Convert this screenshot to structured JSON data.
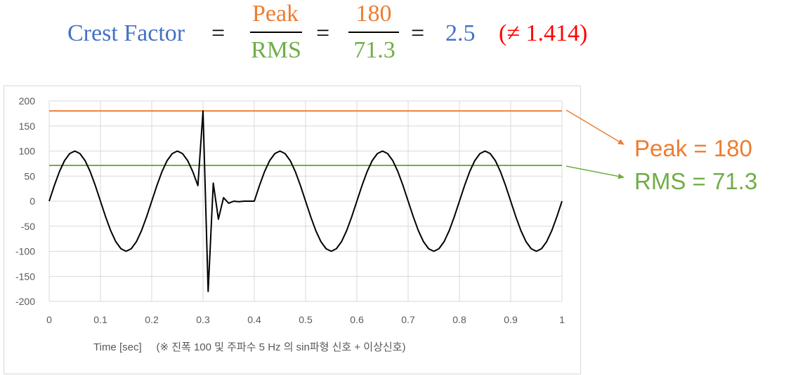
{
  "formula": {
    "lhs": "Crest Factor",
    "eq1": "=",
    "num1": "Peak",
    "den1": "RMS",
    "eq2": "=",
    "num2": "180",
    "den2": "71.3",
    "eq3": "=",
    "result": "2.5",
    "note": "(≠ 1.414)"
  },
  "colors": {
    "blue": "#4472c4",
    "orange": "#ed7d31",
    "green": "#70ad47",
    "red": "#ff0000",
    "signal": "#000000"
  },
  "callouts": {
    "peak": "Peak = 180",
    "rms": "RMS = 71.3"
  },
  "chart_data": {
    "type": "line",
    "xlabel": "Time [sec]     (※ 진폭 100 및 주파수 5 Hz 의 sin파형 신호 + 이상신호)",
    "xlim": [
      0,
      1
    ],
    "ylim": [
      -200,
      200
    ],
    "x_ticks": [
      "0",
      "0.1",
      "0.2",
      "0.3",
      "0.4",
      "0.5",
      "0.6",
      "0.7",
      "0.8",
      "0.9",
      "1"
    ],
    "y_ticks": [
      "200",
      "150",
      "100",
      "50",
      "0",
      "-50",
      "-100",
      "-150",
      "-200"
    ],
    "grid": true,
    "series": [
      {
        "name": "Peak",
        "x": [
          0,
          1
        ],
        "values": [
          180,
          180
        ]
      },
      {
        "name": "RMS",
        "x": [
          0,
          1
        ],
        "values": [
          71.3,
          71.3
        ]
      },
      {
        "x": [
          0,
          0.01,
          0.02,
          0.03,
          0.04,
          0.05,
          0.06,
          0.07,
          0.08,
          0.09,
          0.1,
          0.11,
          0.12,
          0.13,
          0.14,
          0.15,
          0.16,
          0.17,
          0.18,
          0.19,
          0.2,
          0.21,
          0.22,
          0.23,
          0.24,
          0.25,
          0.26,
          0.27,
          0.28,
          0.29,
          0.3,
          0.31,
          0.32,
          0.33,
          0.34,
          0.35,
          0.36,
          0.37,
          0.38,
          0.39,
          0.4,
          0.41,
          0.42,
          0.43,
          0.44,
          0.45,
          0.46,
          0.47,
          0.48,
          0.49,
          0.5,
          0.51,
          0.52,
          0.53,
          0.54,
          0.55,
          0.56,
          0.57,
          0.58,
          0.59,
          0.6,
          0.61,
          0.62,
          0.63,
          0.64,
          0.65,
          0.66,
          0.67,
          0.68,
          0.69,
          0.7,
          0.71,
          0.72,
          0.73,
          0.74,
          0.75,
          0.76,
          0.77,
          0.78,
          0.79,
          0.8,
          0.81,
          0.82,
          0.83,
          0.84,
          0.85,
          0.86,
          0.87,
          0.88,
          0.89,
          0.9,
          0.91,
          0.92,
          0.93,
          0.94,
          0.95,
          0.96,
          0.97,
          0.98,
          0.99,
          1.0
        ],
        "values": [
          0,
          31,
          59,
          81,
          95,
          100,
          95,
          81,
          59,
          31,
          0,
          -31,
          -59,
          -81,
          -95,
          -100,
          -95,
          -81,
          -59,
          -31,
          0,
          31,
          59,
          81,
          95,
          100,
          95,
          81,
          59,
          31,
          180,
          -180,
          36,
          -36,
          7,
          -4,
          0,
          -1,
          0,
          0,
          0,
          31,
          59,
          81,
          95,
          100,
          95,
          81,
          59,
          31,
          0,
          -31,
          -59,
          -81,
          -95,
          -100,
          -95,
          -81,
          -59,
          -31,
          0,
          31,
          59,
          81,
          95,
          100,
          95,
          81,
          59,
          31,
          0,
          -31,
          -59,
          -81,
          -95,
          -100,
          -95,
          -81,
          -59,
          -31,
          0,
          31,
          59,
          81,
          95,
          100,
          95,
          81,
          59,
          31,
          0,
          -31,
          -59,
          -81,
          -95,
          -100,
          -95,
          -81,
          -59,
          -31,
          0
        ]
      }
    ]
  }
}
